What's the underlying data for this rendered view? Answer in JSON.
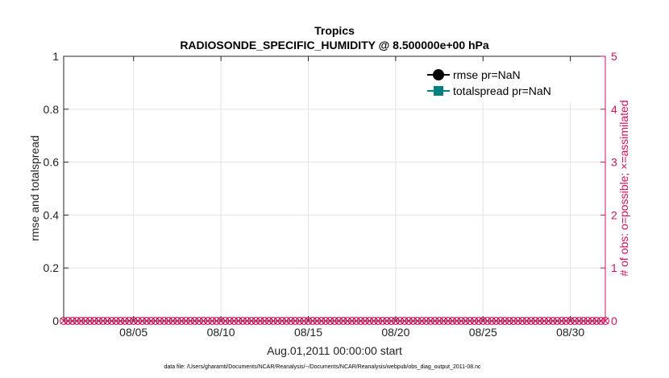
{
  "chart_data": {
    "type": "line",
    "title": "Tropics",
    "subtitle": "RADIOSONDE_SPECIFIC_HUMIDITY @ 8.500000e+00 hPa",
    "xlabel": "Aug.01,2011 00:00:00 start",
    "ylabel": "rmse and totalspread",
    "ylabel_right": "# of obs: o=possible; ×=assimilated",
    "x_range": [
      1,
      32
    ],
    "x_ticks": [
      5,
      10,
      15,
      20,
      25,
      30
    ],
    "x_tick_labels": [
      "08/05",
      "08/10",
      "08/15",
      "08/20",
      "08/25",
      "08/30"
    ],
    "ylim": [
      0,
      1
    ],
    "y_ticks": [
      0,
      0.2,
      0.4,
      0.6,
      0.8,
      1
    ],
    "y_tick_labels": [
      "0",
      "0.2",
      "0.4",
      "0.6",
      "0.8",
      "1"
    ],
    "ylim_right": [
      0,
      5
    ],
    "y_right_ticks": [
      0,
      1,
      2,
      3,
      4,
      5
    ],
    "y_right_tick_labels": [
      "0",
      "1",
      "2",
      "3",
      "4",
      "5"
    ],
    "grid": true,
    "legend_position": "top-right",
    "series": [
      {
        "name": "rmse pr=NaN",
        "color": "#000000",
        "marker": "circle",
        "values": []
      },
      {
        "name": "totalspread pr=NaN",
        "color": "#008080",
        "marker": "square",
        "values": []
      }
    ],
    "obs_counts": {
      "color": "#d0105a",
      "x_start": 1.0,
      "x_end": 32.0,
      "step": 0.25,
      "possible": 0,
      "assimilated": 0
    },
    "footer": "data file: /Users/gharamti/Documents/NCAR/Reanalysis/~/Documents/NCAR/Reanalysis/webpub/obs_diag_output_2011-08.nc"
  }
}
